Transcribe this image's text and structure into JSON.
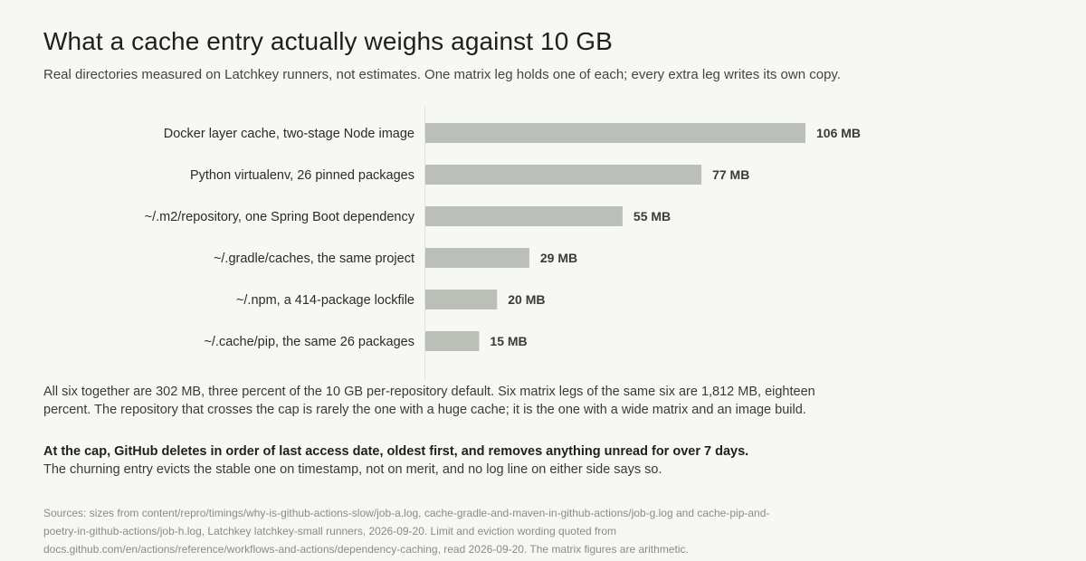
{
  "title": "What a cache entry actually weighs against 10 GB",
  "subtitle": "Real directories measured on Latchkey runners, not estimates. One matrix leg holds one of each; every extra leg writes its own copy.",
  "chart_data": {
    "type": "bar",
    "orientation": "horizontal",
    "categories": [
      "Docker layer cache, two-stage Node image",
      "Python virtualenv, 26 pinned packages",
      "~/.m2/repository, one Spring Boot dependency",
      "~/.gradle/caches, the same project",
      "~/.npm, a 414-package lockfile",
      "~/.cache/pip, the same 26 packages"
    ],
    "values": [
      106,
      77,
      55,
      29,
      20,
      15
    ],
    "value_labels": [
      "106 MB",
      "77 MB",
      "55 MB",
      "29 MB",
      "20 MB",
      "15 MB"
    ],
    "unit": "MB",
    "bar_color": "#babfb7",
    "grid": false
  },
  "paragraph1": "All six together are 302 MB, three percent of the 10 GB per-repository default. Six matrix legs of the same six are 1,812 MB, eighteen percent. The repository that crosses the cap is rarely the one with a huge cache; it is the one with a wide matrix and an image build.",
  "paragraph2_strong": "At the cap, GitHub deletes in order of last access date, oldest first, and removes anything unread for over 7 days.",
  "paragraph2_text": "The churning entry evicts the stable one on timestamp, not on merit, and no log line on either side says so.",
  "sources": "Sources: sizes from content/repro/timings/why-is-github-actions-slow/job-a.log, cache-gradle-and-maven-in-github-actions/job-g.log and cache-pip-and-poetry-in-github-actions/job-h.log, Latchkey latchkey-small runners, 2026-09-20. Limit and eviction wording quoted from docs.github.com/en/actions/reference/workflows-and-actions/dependency-caching, read 2026-09-20. The matrix figures are arithmetic."
}
